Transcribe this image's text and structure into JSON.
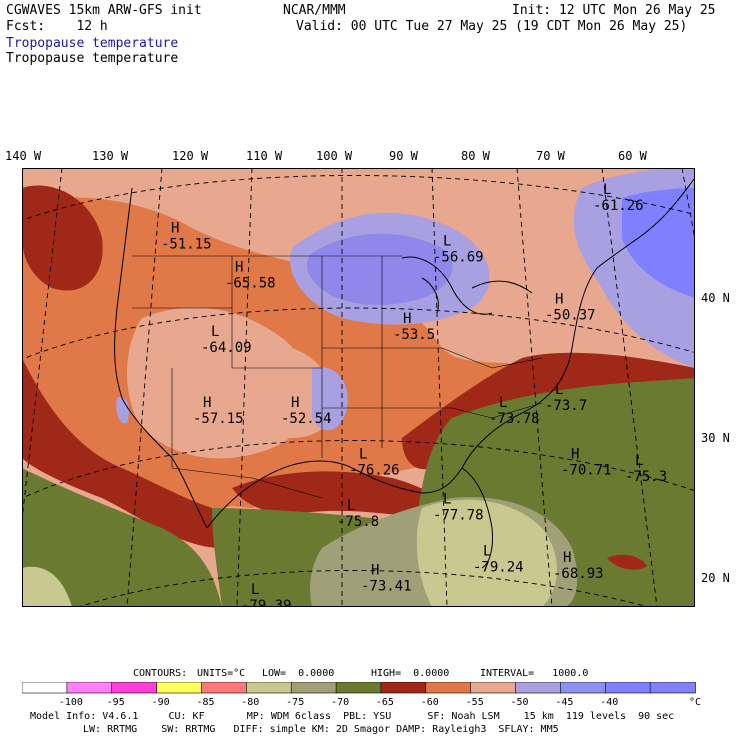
{
  "header": {
    "model": "CGWAVES 15km ARW-GFS init",
    "fcst": "Fcst:    12 h",
    "org": "NCAR/MMM",
    "init": "Init: 12 UTC Mon 26 May 25",
    "valid": "Valid: 00 UTC Tue 27 May 25 (19 CDT Mon 26 May 25)",
    "field_title_blue": "Tropopause temperature",
    "field_title_black": "Tropopause temperature"
  },
  "longitude_labels": [
    "140 W",
    "130 W",
    "120 W",
    "110 W",
    "100 W",
    "90 W",
    "80 W",
    "70 W",
    "60 W"
  ],
  "latitude_labels": [
    "40 N",
    "30 N",
    "20 N"
  ],
  "extrema": [
    {
      "type": "L",
      "value": "-61.26",
      "lon": -68,
      "lat": 50
    },
    {
      "type": "H",
      "value": "-51.15",
      "lon": -122,
      "lat": 47
    },
    {
      "type": "L",
      "value": "-56.69",
      "lon": -88,
      "lat": 46
    },
    {
      "type": "H",
      "value": "-65.58",
      "lon": -114,
      "lat": 44
    },
    {
      "type": "H",
      "value": "-50.37",
      "lon": -74,
      "lat": 41.5
    },
    {
      "type": "H",
      "value": "-53.5",
      "lon": -93,
      "lat": 40
    },
    {
      "type": "L",
      "value": "-64.09",
      "lon": -117,
      "lat": 39
    },
    {
      "type": "H",
      "value": "-57.15",
      "lon": -118,
      "lat": 33.5
    },
    {
      "type": "H",
      "value": "-52.54",
      "lon": -107,
      "lat": 33.5
    },
    {
      "type": "L",
      "value": "-73.78",
      "lon": -81,
      "lat": 33.5
    },
    {
      "type": "L",
      "value": "-73.7",
      "lon": -74,
      "lat": 34.5
    },
    {
      "type": "H",
      "value": "-70.71",
      "lon": -72,
      "lat": 29.5
    },
    {
      "type": "L",
      "value": "-75.3",
      "lon": -64,
      "lat": 29
    },
    {
      "type": "L",
      "value": "-76.26",
      "lon": -98.5,
      "lat": 29.5
    },
    {
      "type": "L",
      "value": "-75.8",
      "lon": -100,
      "lat": 25.5
    },
    {
      "type": "L",
      "value": "-77.78",
      "lon": -88,
      "lat": 26
    },
    {
      "type": "L",
      "value": "-79.24",
      "lon": -83,
      "lat": 22
    },
    {
      "type": "H",
      "value": "-68.93",
      "lon": -73,
      "lat": 21.5
    },
    {
      "type": "H",
      "value": "-73.41",
      "lon": -97,
      "lat": 20.5
    },
    {
      "type": "L",
      "value": "-79.39",
      "lon": -112,
      "lat": 19
    }
  ],
  "contours_line": {
    "label": "CONTOURS:",
    "units": "UNITS=°C",
    "low": "LOW=  0.0000",
    "high": "HIGH=  0.0000",
    "interval": "INTERVAL=   1000.0"
  },
  "legend": {
    "colors": [
      "#ffffff",
      "#ff80ff",
      "#ff40d8",
      "#ffff60",
      "#ff7878",
      "#c8c890",
      "#a0a078",
      "#6a7a30",
      "#a02818",
      "#e07848",
      "#e8a890",
      "#a8a0e0",
      "#9090f0",
      "#8080ff",
      "#8080f8"
    ],
    "tick_labels": [
      "-100",
      "-95",
      "-90",
      "-85",
      "-80",
      "-75",
      "-70",
      "-65",
      "-60",
      "-55",
      "-50",
      "-45",
      "-40"
    ],
    "unit": "°C"
  },
  "footer": {
    "line1": "Model Info: V4.6.1     CU: KF       MP: WDM 6class  PBL: YSU      SF: Noah LSM    15 km  119 levels  90 sec",
    "line2": "LW: RRTMG    SW: RRTMG   DIFF: simple KM: 2D Smagor DAMP: Rayleigh3  SFLAY: MM5"
  },
  "colors": {
    "deep_red": "#a02818",
    "orange": "#e07848",
    "salmon": "#e8a890",
    "lavender": "#a8a0e0",
    "blue": "#8080ff",
    "olive": "#6a7a30",
    "khaki": "#a0a078",
    "pale_khaki": "#c8c890",
    "title_blue": "#1a1aa0"
  }
}
